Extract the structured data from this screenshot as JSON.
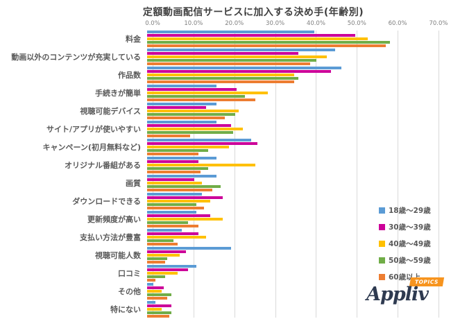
{
  "title": "定額動画配信サービスに加入する決め手(年齢別)",
  "colors": {
    "series": [
      "#5B9BD5",
      "#CC0099",
      "#FFC000",
      "#70AD47",
      "#ED7D31"
    ],
    "gridline": "#D9D9D9",
    "tick_text": "#808080",
    "category_text": "#595959",
    "title_text": "#404040",
    "logo_navy": "#2E3A50",
    "badge_orange": "#F7941E"
  },
  "legend": {
    "items": [
      {
        "label": "18歳〜29歳",
        "color": "#5B9BD5"
      },
      {
        "label": "30歳〜39歳",
        "color": "#CC0099"
      },
      {
        "label": "40歳〜49歳",
        "color": "#FFC000"
      },
      {
        "label": "50歳〜59歳",
        "color": "#70AD47"
      },
      {
        "label": "60歳以上",
        "color": "#ED7D31"
      }
    ]
  },
  "logo": {
    "brand": "Appliv",
    "badge": "TOPICS"
  },
  "chart_data": {
    "type": "bar",
    "orientation": "horizontal",
    "title": "定額動画配信サービスに加入する決め手(年齢別)",
    "xlim": [
      0,
      70
    ],
    "x_tick_labels": [
      "0.0%",
      "10.0%",
      "20.0%",
      "30.0%",
      "40.0%",
      "50.0%",
      "60.0%",
      "70.0%"
    ],
    "grid": true,
    "legend_position": "right",
    "categories": [
      "料金",
      "動画以外のコンテンツが充実している",
      "作品数",
      "手続きが簡単",
      "視聴可能デバイス",
      "サイト/アプリが使いやすい",
      "キャンペーン(初月無料など)",
      "オリジナル番組がある",
      "画質",
      "ダウンロードできる",
      "更新頻度が高い",
      "支払い方法が豊富",
      "視聴可能人数",
      "口コミ",
      "その他",
      "特にない"
    ],
    "series": [
      {
        "name": "18歳〜29歳",
        "color": "#5B9BD5",
        "values": [
          41,
          46,
          47.5,
          17,
          17,
          17,
          25.5,
          17,
          17,
          13.5,
          12,
          8.5,
          20.5,
          12,
          1.5,
          2
        ]
      },
      {
        "name": "30歳〜39歳",
        "color": "#CC0099",
        "values": [
          51,
          37,
          45,
          22,
          14.5,
          20.5,
          27,
          12.5,
          11.5,
          18.5,
          15.5,
          12.5,
          9.5,
          10,
          4,
          6
        ]
      },
      {
        "name": "40歳〜49歳",
        "color": "#FFC000",
        "values": [
          54,
          44,
          36,
          29.5,
          22.5,
          23.5,
          20,
          26.5,
          13.5,
          15.5,
          18.5,
          14.5,
          8,
          7.5,
          3.5,
          3.5
        ]
      },
      {
        "name": "50歳〜59歳",
        "color": "#70AD47",
        "values": [
          59.5,
          41.5,
          37,
          24,
          21.5,
          21,
          15,
          15,
          18,
          12,
          10,
          6.5,
          5,
          4.5,
          6,
          6
        ]
      },
      {
        "name": "60歳以上",
        "color": "#ED7D31",
        "values": [
          58.5,
          40,
          36,
          26.5,
          19,
          10.5,
          12.5,
          13,
          16,
          14,
          12.5,
          7.5,
          4.5,
          2,
          5,
          5.5
        ]
      }
    ]
  }
}
